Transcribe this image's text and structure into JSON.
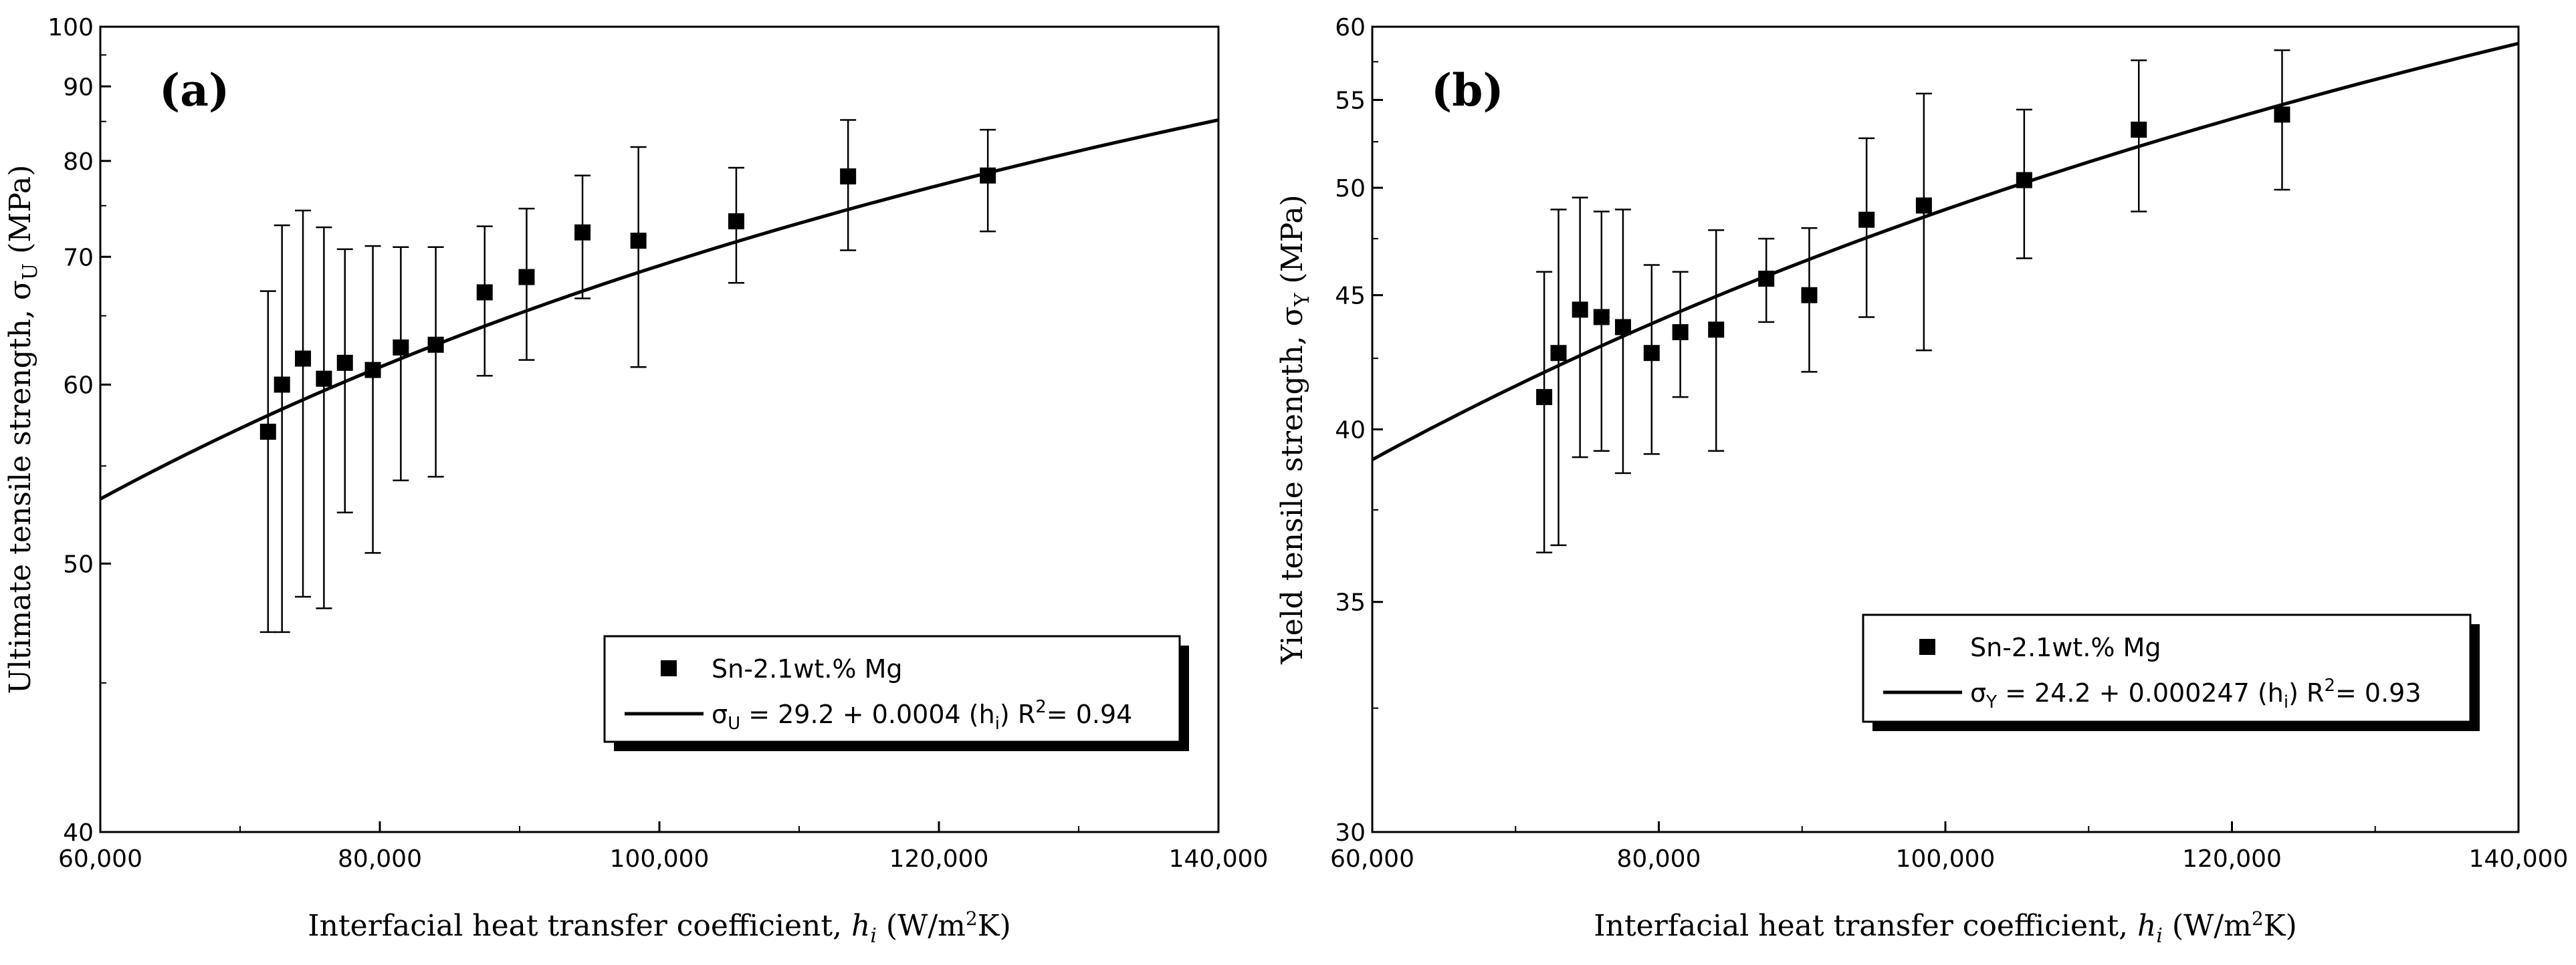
{
  "chart_data": [
    {
      "type": "scatter",
      "panel_label": "(a)",
      "xlabel": "Interfacial heat transfer coefficient, h_i (W/m²K)",
      "ylabel": "Ultimate tensile strength, σ_U (MPa)",
      "xlim": [
        60000,
        140000
      ],
      "ylim": [
        40,
        100
      ],
      "y_scale": "reciprocal",
      "x_ticks": [
        "60,000",
        "80,000",
        "100,000",
        "120,000",
        "140,000"
      ],
      "y_ticks": [
        40,
        50,
        60,
        70,
        80,
        90,
        100
      ],
      "legend_position": "lower-right",
      "series": [
        {
          "name": "Sn-2.1wt.% Mg",
          "marker": "square",
          "points": [
            {
              "x": 72000,
              "y": 57.0,
              "err_low": 47.0,
              "err_high": 67.0
            },
            {
              "x": 73000,
              "y": 60.0,
              "err_low": 47.0,
              "err_high": 73.0
            },
            {
              "x": 74500,
              "y": 61.8,
              "err_low": 48.5,
              "err_high": 74.5
            },
            {
              "x": 76000,
              "y": 60.4,
              "err_low": 48.0,
              "err_high": 72.8
            },
            {
              "x": 77500,
              "y": 61.5,
              "err_low": 52.5,
              "err_high": 70.7
            },
            {
              "x": 79500,
              "y": 61.0,
              "err_low": 50.5,
              "err_high": 71.0
            },
            {
              "x": 81500,
              "y": 62.6,
              "err_low": 54.2,
              "err_high": 70.9
            },
            {
              "x": 84000,
              "y": 62.8,
              "err_low": 54.4,
              "err_high": 70.9
            },
            {
              "x": 87500,
              "y": 66.9,
              "err_low": 60.6,
              "err_high": 72.9
            },
            {
              "x": 90500,
              "y": 68.2,
              "err_low": 61.7,
              "err_high": 74.7
            },
            {
              "x": 94500,
              "y": 72.3,
              "err_low": 66.4,
              "err_high": 78.3
            },
            {
              "x": 98500,
              "y": 71.5,
              "err_low": 61.2,
              "err_high": 81.7
            },
            {
              "x": 105500,
              "y": 73.4,
              "err_low": 67.7,
              "err_high": 79.2
            },
            {
              "x": 113500,
              "y": 78.2,
              "err_low": 70.6,
              "err_high": 85.2
            },
            {
              "x": 123500,
              "y": 78.3,
              "err_low": 72.4,
              "err_high": 83.9
            }
          ]
        },
        {
          "name": "fit",
          "type": "line",
          "equation": {
            "lhs": "σ",
            "lhs_sub": "U",
            "rhs": " = 29.2 + 0.0004 (h",
            "rhs_sub": "i",
            "tail": ")",
            "r2_label": "R",
            "r2_sup": "2",
            "r2_value": "= 0.94"
          },
          "intercept": 29.2,
          "slope": 0.0004
        }
      ]
    },
    {
      "type": "scatter",
      "panel_label": "(b)",
      "xlabel": "Interfacial heat transfer coefficient, h_i (W/m²K)",
      "ylabel": "Yield tensile strength, σ_Y (MPa)",
      "xlim": [
        60000,
        140000
      ],
      "ylim": [
        30,
        60
      ],
      "y_scale": "reciprocal",
      "x_ticks": [
        "60,000",
        "80,000",
        "100,000",
        "120,000",
        "140,000"
      ],
      "y_ticks": [
        30,
        35,
        40,
        45,
        50,
        55,
        60
      ],
      "legend_position": "lower-right",
      "series": [
        {
          "name": "Sn-2.1wt.% Mg",
          "marker": "square",
          "points": [
            {
              "x": 72000,
              "y": 41.1,
              "err_low": 36.3,
              "err_high": 46.0
            },
            {
              "x": 73000,
              "y": 42.7,
              "err_low": 36.5,
              "err_high": 48.9
            },
            {
              "x": 74500,
              "y": 44.4,
              "err_low": 39.1,
              "err_high": 49.5
            },
            {
              "x": 76000,
              "y": 44.1,
              "err_low": 39.3,
              "err_high": 48.8
            },
            {
              "x": 77500,
              "y": 43.7,
              "err_low": 38.6,
              "err_high": 48.9
            },
            {
              "x": 79500,
              "y": 42.7,
              "err_low": 39.2,
              "err_high": 46.3
            },
            {
              "x": 81500,
              "y": 43.5,
              "err_low": 41.1,
              "err_high": 46.0
            },
            {
              "x": 84000,
              "y": 43.6,
              "err_low": 39.3,
              "err_high": 47.9
            },
            {
              "x": 87500,
              "y": 45.7,
              "err_low": 43.9,
              "err_high": 47.5
            },
            {
              "x": 90500,
              "y": 45.0,
              "err_low": 42.0,
              "err_high": 48.0
            },
            {
              "x": 94500,
              "y": 48.4,
              "err_low": 44.1,
              "err_high": 52.7
            },
            {
              "x": 98500,
              "y": 49.1,
              "err_low": 42.8,
              "err_high": 55.4
            },
            {
              "x": 105500,
              "y": 50.4,
              "err_low": 46.6,
              "err_high": 54.4
            },
            {
              "x": 113500,
              "y": 53.2,
              "err_low": 48.8,
              "err_high": 57.6
            },
            {
              "x": 123500,
              "y": 54.1,
              "err_low": 49.9,
              "err_high": 58.3
            }
          ]
        },
        {
          "name": "fit",
          "type": "line",
          "equation": {
            "lhs": "σ",
            "lhs_sub": "Y",
            "rhs": " = 24.2 + 0.000247 (h",
            "rhs_sub": "i",
            "tail": ")",
            "r2_label": "R",
            "r2_sup": "2",
            "r2_value": "= 0.93"
          },
          "intercept": 24.2,
          "slope": 0.000247
        }
      ]
    }
  ]
}
